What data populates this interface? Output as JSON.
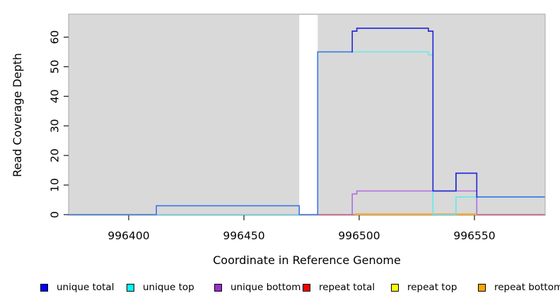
{
  "figure": {
    "background": "#FFFFFF",
    "panel_background": "#D9D9D9",
    "panel_border_color": "#A8A8A8"
  },
  "chart_data": {
    "type": "line",
    "subtype": "step-coverage",
    "title": "",
    "xlabel": "Coordinate in Reference Genome",
    "ylabel": "Read Coverage Depth",
    "x_ticks": [
      996400,
      996450,
      996500,
      996550
    ],
    "y_ticks": [
      0,
      10,
      20,
      30,
      40,
      50,
      60
    ],
    "x_range": [
      996374,
      996581
    ],
    "y_range": [
      0,
      68
    ],
    "grid": false,
    "legend_position": "bottom",
    "masked_region": {
      "from": 996474,
      "to": 996482,
      "color": "#FFFFFF"
    },
    "series": [
      {
        "name": "unique bottom",
        "line_color": "#B26BE0",
        "steps": [
          [
            996374,
            0
          ],
          [
            996497,
            7
          ],
          [
            996499,
            8
          ],
          [
            996551,
            0
          ]
        ],
        "x_end": 996581
      },
      {
        "name": "repeat total",
        "line_color": "#E0496A",
        "steps": [
          [
            996374,
            0
          ]
        ],
        "x_end": 996581
      },
      {
        "name": "repeat top",
        "line_color": "#FFFF00",
        "steps": [
          [
            996498,
            0
          ]
        ],
        "x_end": 996551
      },
      {
        "name": "repeat bottom",
        "line_color": "#FFA028",
        "steps": [
          [
            996498,
            0
          ]
        ],
        "x_end": 996551
      },
      {
        "name": "unique top",
        "line_color": "#66E9E9",
        "steps": [
          [
            996374,
            0
          ],
          [
            996482,
            55
          ],
          [
            996530,
            54
          ],
          [
            996532,
            0
          ],
          [
            996542,
            6
          ]
        ],
        "x_end": 996581
      },
      {
        "name": "unique total",
        "line_color": "#3B74E8",
        "line_color_dark": "#2626D6",
        "dark_range": [
          996497,
          996551
        ],
        "steps": [
          [
            996374,
            0
          ],
          [
            996412,
            3
          ],
          [
            996474,
            0
          ],
          [
            996482,
            55
          ],
          [
            996497,
            62
          ],
          [
            996499,
            63
          ],
          [
            996530,
            62
          ],
          [
            996532,
            8
          ],
          [
            996542,
            14
          ],
          [
            996551,
            6
          ]
        ],
        "x_end": 996581
      }
    ]
  },
  "legend": {
    "items": [
      {
        "label": "unique total",
        "swatch_color": "#0000FF"
      },
      {
        "label": "unique top",
        "swatch_color": "#00FFFF"
      },
      {
        "label": "unique bottom",
        "swatch_color": "#9932CC"
      },
      {
        "label": "repeat total",
        "swatch_color": "#FF0000"
      },
      {
        "label": "repeat top",
        "swatch_color": "#FFFF00"
      },
      {
        "label": "repeat bottom",
        "swatch_color": "#FFA500"
      }
    ]
  }
}
